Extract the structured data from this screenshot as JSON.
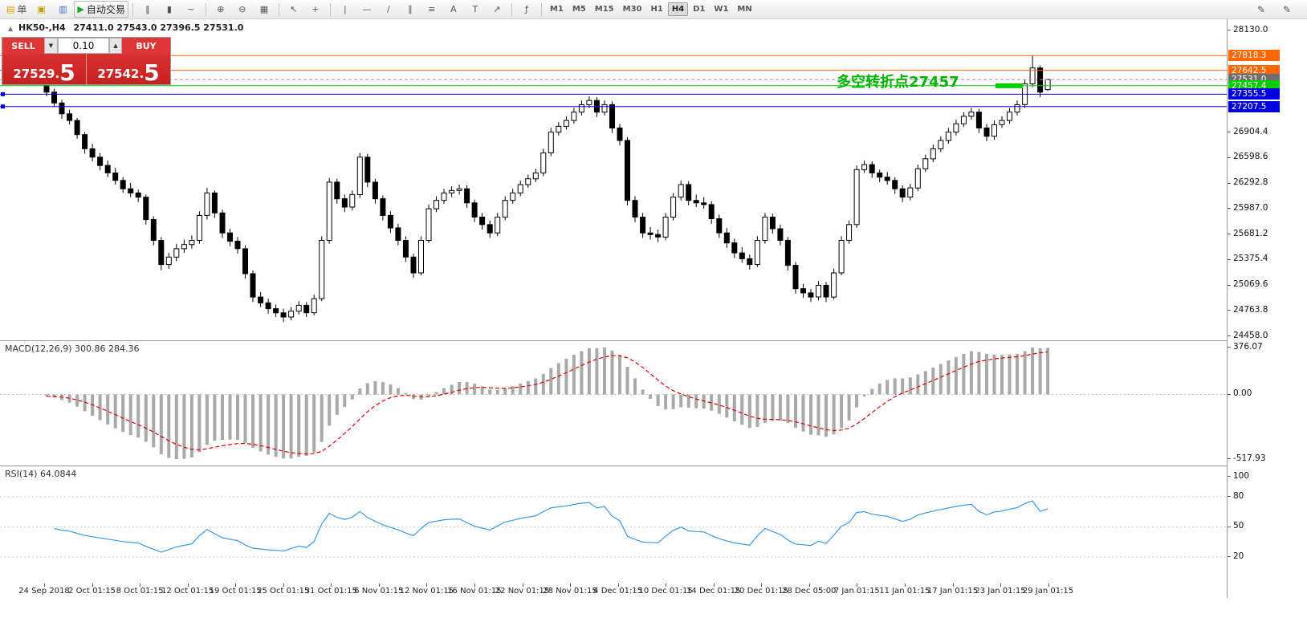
{
  "colors": {
    "accent_red": "#d83030",
    "level_orange": "#ff6600",
    "level_green": "#00cc00",
    "level_blue": "#0000dd",
    "bid_gray": "#6e6e6e",
    "macd_signal": "#e00000",
    "macd_hist": "#a9a9a9",
    "rsi_line": "#3a99e8"
  },
  "toolbar": {
    "items": [
      {
        "name": "new-order-button",
        "glyph": "▤",
        "icon_color": "#e8a000",
        "label": "单",
        "box": false
      },
      {
        "name": "chart-window-icon",
        "glyph": "▣",
        "icon_color": "#c99a00"
      },
      {
        "name": "profiles-icon",
        "glyph": "▥",
        "icon_color": "#3a6ec0"
      },
      {
        "name": "autotrading-button",
        "glyph": "▶",
        "icon_color": "#1fa51f",
        "label": "自动交易",
        "box": true
      },
      {
        "sep": true
      },
      {
        "name": "bar-chart-icon",
        "glyph": "‖"
      },
      {
        "name": "candlestick-chart-icon",
        "glyph": "▮"
      },
      {
        "name": "line-chart-icon",
        "glyph": "~"
      },
      {
        "sep": true
      },
      {
        "name": "zoom-in-icon",
        "glyph": "⊕"
      },
      {
        "name": "zoom-out-icon",
        "glyph": "⊖"
      },
      {
        "name": "tile-windows-icon",
        "glyph": "▦"
      },
      {
        "sep": true
      },
      {
        "name": "cursor-icon",
        "glyph": "↖"
      },
      {
        "name": "crosshair-icon",
        "glyph": "+"
      },
      {
        "sep": true
      },
      {
        "name": "vertical-line-icon",
        "glyph": "|"
      },
      {
        "name": "horizontal-line-icon",
        "glyph": "—"
      },
      {
        "name": "trendline-icon",
        "glyph": "/"
      },
      {
        "name": "channel-icon",
        "glyph": "∥"
      },
      {
        "name": "fibonacci-icon",
        "glyph": "≡"
      },
      {
        "name": "text-icon",
        "glyph": "A"
      },
      {
        "name": "label-icon",
        "glyph": "T"
      },
      {
        "name": "arrows-icon",
        "glyph": "↗"
      },
      {
        "sep": true
      },
      {
        "name": "indicators-icon",
        "glyph": "ƒ"
      },
      {
        "sep": true
      }
    ],
    "timeframes": [
      "M1",
      "M5",
      "M15",
      "M30",
      "H1",
      "H4",
      "D1",
      "W1",
      "MN"
    ],
    "active_timeframe": "H4",
    "right_items": [
      {
        "name": "pencil-icon",
        "glyph": "✎"
      },
      {
        "name": "marker-icon",
        "glyph": "✎"
      }
    ]
  },
  "chart": {
    "title_marker": "▲",
    "title": "HK50-,H4",
    "ohlc": "27411.0 27543.0 27396.5 27531.0",
    "annotation": {
      "text": "多空转折点27457",
      "color": "#00b300"
    }
  },
  "trade_panel": {
    "sell_label": "SELL",
    "buy_label": "BUY",
    "volume": "0.10",
    "down_arrow": "▼",
    "up_arrow": "▲",
    "sell_price_main": "27529.",
    "sell_price_pip": "5",
    "buy_price_main": "27542.",
    "buy_price_pip": "5"
  },
  "chart_data": {
    "type": "candlestick",
    "symbol": "HK50-",
    "timeframe": "H4",
    "price_min": 24458.0,
    "price_max": 28130.0,
    "y_axis_values": [
      "28130.0",
      "26904.4",
      "26598.6",
      "26292.8",
      "25987.0",
      "25681.2",
      "25375.4",
      "25069.6",
      "24763.8",
      "24458.0"
    ],
    "levels": [
      {
        "price": 27818.3,
        "label": "27818.3",
        "color": "#ff6600"
      },
      {
        "price": 27642.5,
        "label": "27642.5",
        "color": "#ff6600"
      },
      {
        "price": 27531.0,
        "label": "27531.0",
        "color": "#999999",
        "tag_bg": "#6e6e6e",
        "dashed": true
      },
      {
        "price": 27457.4,
        "label": "27457.4",
        "color": "#00cc00",
        "thick_segment": [
          1240,
          1274
        ]
      },
      {
        "price": 27355.5,
        "label": "27355.5",
        "color": "#0000dd",
        "handle": true
      },
      {
        "price": 27207.5,
        "label": "27207.5",
        "color": "#0000dd",
        "handle": true
      }
    ],
    "x_labels": [
      "24 Sep 2018",
      "2 Oct 01:15",
      "8 Oct 01:15",
      "12 Oct 01:15",
      "19 Oct 01:15",
      "25 Oct 01:15",
      "31 Oct 01:15",
      "6 Nov 01:15",
      "12 Nov 01:15",
      "16 Nov 01:15",
      "22 Nov 01:15",
      "28 Nov 01:15",
      "4 Dec 01:15",
      "10 Dec 01:15",
      "14 Dec 01:15",
      "20 Dec 01:15",
      "28 Dec 05:00",
      "7 Jan 01:15",
      "11 Jan 01:15",
      "17 Jan 01:15",
      "23 Jan 01:15",
      "29 Jan 01:15"
    ],
    "indicators": {
      "macd": {
        "label": "MACD(12,26,9) 300.86 284.36",
        "params": [
          12,
          26,
          9
        ],
        "display_values": [
          300.86,
          284.36
        ],
        "axis_labels": [
          "376.07",
          "0.00",
          "-517.93"
        ],
        "axis": [
          376.07,
          0.0,
          -517.93
        ]
      },
      "rsi": {
        "label": "RSI(14) 64.0844",
        "period": 14,
        "display_value": 64.0844,
        "axis_labels": [
          "100",
          "80",
          "50",
          "20"
        ],
        "level_lines": [
          80,
          50,
          20
        ]
      }
    },
    "candles": [
      [
        27480,
        27500,
        27330,
        27380
      ],
      [
        27380,
        27420,
        27200,
        27250
      ],
      [
        27250,
        27290,
        27060,
        27120
      ],
      [
        27120,
        27170,
        26990,
        27040
      ],
      [
        27040,
        27070,
        26820,
        26870
      ],
      [
        26870,
        26900,
        26640,
        26700
      ],
      [
        26700,
        26760,
        26550,
        26600
      ],
      [
        26600,
        26650,
        26440,
        26500
      ],
      [
        26500,
        26560,
        26360,
        26410
      ],
      [
        26410,
        26470,
        26270,
        26320
      ],
      [
        26320,
        26360,
        26170,
        26220
      ],
      [
        26220,
        26290,
        26120,
        26170
      ],
      [
        26170,
        26210,
        26060,
        26120
      ],
      [
        26120,
        26150,
        25790,
        25850
      ],
      [
        25850,
        25890,
        25540,
        25600
      ],
      [
        25600,
        25640,
        25240,
        25310
      ],
      [
        25310,
        25450,
        25260,
        25400
      ],
      [
        25400,
        25560,
        25350,
        25500
      ],
      [
        25500,
        25610,
        25450,
        25550
      ],
      [
        25550,
        25660,
        25500,
        25600
      ],
      [
        25600,
        25950,
        25560,
        25900
      ],
      [
        25900,
        26230,
        25850,
        26170
      ],
      [
        26170,
        26200,
        25870,
        25930
      ],
      [
        25930,
        25970,
        25630,
        25690
      ],
      [
        25690,
        25740,
        25530,
        25590
      ],
      [
        25590,
        25640,
        25440,
        25500
      ],
      [
        25500,
        25540,
        25140,
        25200
      ],
      [
        25200,
        25240,
        24860,
        24920
      ],
      [
        24920,
        24980,
        24800,
        24850
      ],
      [
        24850,
        24900,
        24720,
        24780
      ],
      [
        24780,
        24830,
        24680,
        24730
      ],
      [
        24730,
        24780,
        24620,
        24680
      ],
      [
        24680,
        24800,
        24640,
        24750
      ],
      [
        24750,
        24870,
        24710,
        24820
      ],
      [
        24820,
        24860,
        24680,
        24730
      ],
      [
        24730,
        24950,
        24700,
        24900
      ],
      [
        24900,
        25650,
        24870,
        25600
      ],
      [
        25600,
        26350,
        25560,
        26300
      ],
      [
        26300,
        26340,
        26040,
        26100
      ],
      [
        26100,
        26150,
        25940,
        26000
      ],
      [
        26000,
        26200,
        25960,
        26150
      ],
      [
        26150,
        26650,
        26110,
        26600
      ],
      [
        26600,
        26640,
        26240,
        26300
      ],
      [
        26300,
        26340,
        26040,
        26100
      ],
      [
        26100,
        26140,
        25840,
        25900
      ],
      [
        25900,
        25950,
        25690,
        25750
      ],
      [
        25750,
        25800,
        25540,
        25600
      ],
      [
        25600,
        25650,
        25340,
        25400
      ],
      [
        25400,
        25440,
        25150,
        25210
      ],
      [
        25210,
        25650,
        25180,
        25600
      ],
      [
        25600,
        26030,
        25570,
        25980
      ],
      [
        25980,
        26130,
        25940,
        26080
      ],
      [
        26080,
        26220,
        26040,
        26170
      ],
      [
        26170,
        26250,
        26120,
        26200
      ],
      [
        26200,
        26270,
        26150,
        26220
      ],
      [
        26220,
        26260,
        25990,
        26050
      ],
      [
        26050,
        26090,
        25820,
        25880
      ],
      [
        25880,
        25930,
        25730,
        25790
      ],
      [
        25790,
        25840,
        25630,
        25690
      ],
      [
        25690,
        25930,
        25650,
        25880
      ],
      [
        25880,
        26130,
        25840,
        26080
      ],
      [
        26080,
        26220,
        26040,
        26170
      ],
      [
        26170,
        26320,
        26130,
        26270
      ],
      [
        26270,
        26390,
        26230,
        26340
      ],
      [
        26340,
        26460,
        26300,
        26410
      ],
      [
        26410,
        26700,
        26370,
        26650
      ],
      [
        26650,
        26950,
        26610,
        26900
      ],
      [
        26900,
        27020,
        26860,
        26970
      ],
      [
        26970,
        27090,
        26930,
        27040
      ],
      [
        27040,
        27190,
        27000,
        27140
      ],
      [
        27140,
        27280,
        27100,
        27230
      ],
      [
        27230,
        27330,
        27190,
        27280
      ],
      [
        27280,
        27320,
        27080,
        27140
      ],
      [
        27140,
        27280,
        27100,
        27230
      ],
      [
        27230,
        27270,
        26890,
        26950
      ],
      [
        26950,
        27000,
        26740,
        26800
      ],
      [
        26800,
        26840,
        26020,
        26080
      ],
      [
        26080,
        26130,
        25820,
        25880
      ],
      [
        25880,
        25930,
        25630,
        25690
      ],
      [
        25690,
        25760,
        25610,
        25670
      ],
      [
        25670,
        25730,
        25580,
        25640
      ],
      [
        25640,
        25930,
        25600,
        25880
      ],
      [
        25880,
        26170,
        25840,
        26120
      ],
      [
        26120,
        26320,
        26080,
        26270
      ],
      [
        26270,
        26310,
        26020,
        26080
      ],
      [
        26080,
        26150,
        26000,
        26050
      ],
      [
        26050,
        26120,
        25980,
        26030
      ],
      [
        26030,
        26070,
        25800,
        25860
      ],
      [
        25860,
        25910,
        25630,
        25690
      ],
      [
        25690,
        25750,
        25510,
        25570
      ],
      [
        25570,
        25620,
        25390,
        25450
      ],
      [
        25450,
        25520,
        25330,
        25380
      ],
      [
        25380,
        25430,
        25250,
        25310
      ],
      [
        25310,
        25650,
        25280,
        25600
      ],
      [
        25600,
        25930,
        25560,
        25880
      ],
      [
        25880,
        25920,
        25680,
        25740
      ],
      [
        25740,
        25790,
        25540,
        25600
      ],
      [
        25600,
        25640,
        25240,
        25300
      ],
      [
        25300,
        25340,
        24960,
        25020
      ],
      [
        25020,
        25080,
        24910,
        24970
      ],
      [
        24970,
        25020,
        24860,
        24920
      ],
      [
        24920,
        25110,
        24880,
        25060
      ],
      [
        25060,
        25100,
        24860,
        24920
      ],
      [
        24920,
        25260,
        24890,
        25210
      ],
      [
        25210,
        25650,
        25180,
        25600
      ],
      [
        25600,
        25840,
        25560,
        25790
      ],
      [
        25790,
        26500,
        25750,
        26450
      ],
      [
        26450,
        26560,
        26410,
        26510
      ],
      [
        26510,
        26550,
        26350,
        26410
      ],
      [
        26410,
        26450,
        26300,
        26360
      ],
      [
        26360,
        26420,
        26270,
        26320
      ],
      [
        26320,
        26360,
        26160,
        26220
      ],
      [
        26220,
        26260,
        26060,
        26120
      ],
      [
        26120,
        26280,
        26080,
        26230
      ],
      [
        26230,
        26510,
        26190,
        26460
      ],
      [
        26460,
        26630,
        26420,
        26580
      ],
      [
        26580,
        26750,
        26540,
        26700
      ],
      [
        26700,
        26850,
        26660,
        26800
      ],
      [
        26800,
        26950,
        26760,
        26900
      ],
      [
        26900,
        27050,
        26860,
        27000
      ],
      [
        27000,
        27140,
        26960,
        27090
      ],
      [
        27090,
        27190,
        27050,
        27140
      ],
      [
        27140,
        27180,
        26890,
        26950
      ],
      [
        26950,
        27000,
        26790,
        26850
      ],
      [
        26850,
        27040,
        26810,
        26990
      ],
      [
        26990,
        27090,
        26950,
        27040
      ],
      [
        27040,
        27190,
        27000,
        27140
      ],
      [
        27140,
        27280,
        27100,
        27230
      ],
      [
        27230,
        27530,
        27190,
        27480
      ],
      [
        27480,
        27818,
        27440,
        27670
      ],
      [
        27670,
        27700,
        27320,
        27380
      ],
      [
        27411,
        27543,
        27397,
        27531
      ]
    ]
  }
}
